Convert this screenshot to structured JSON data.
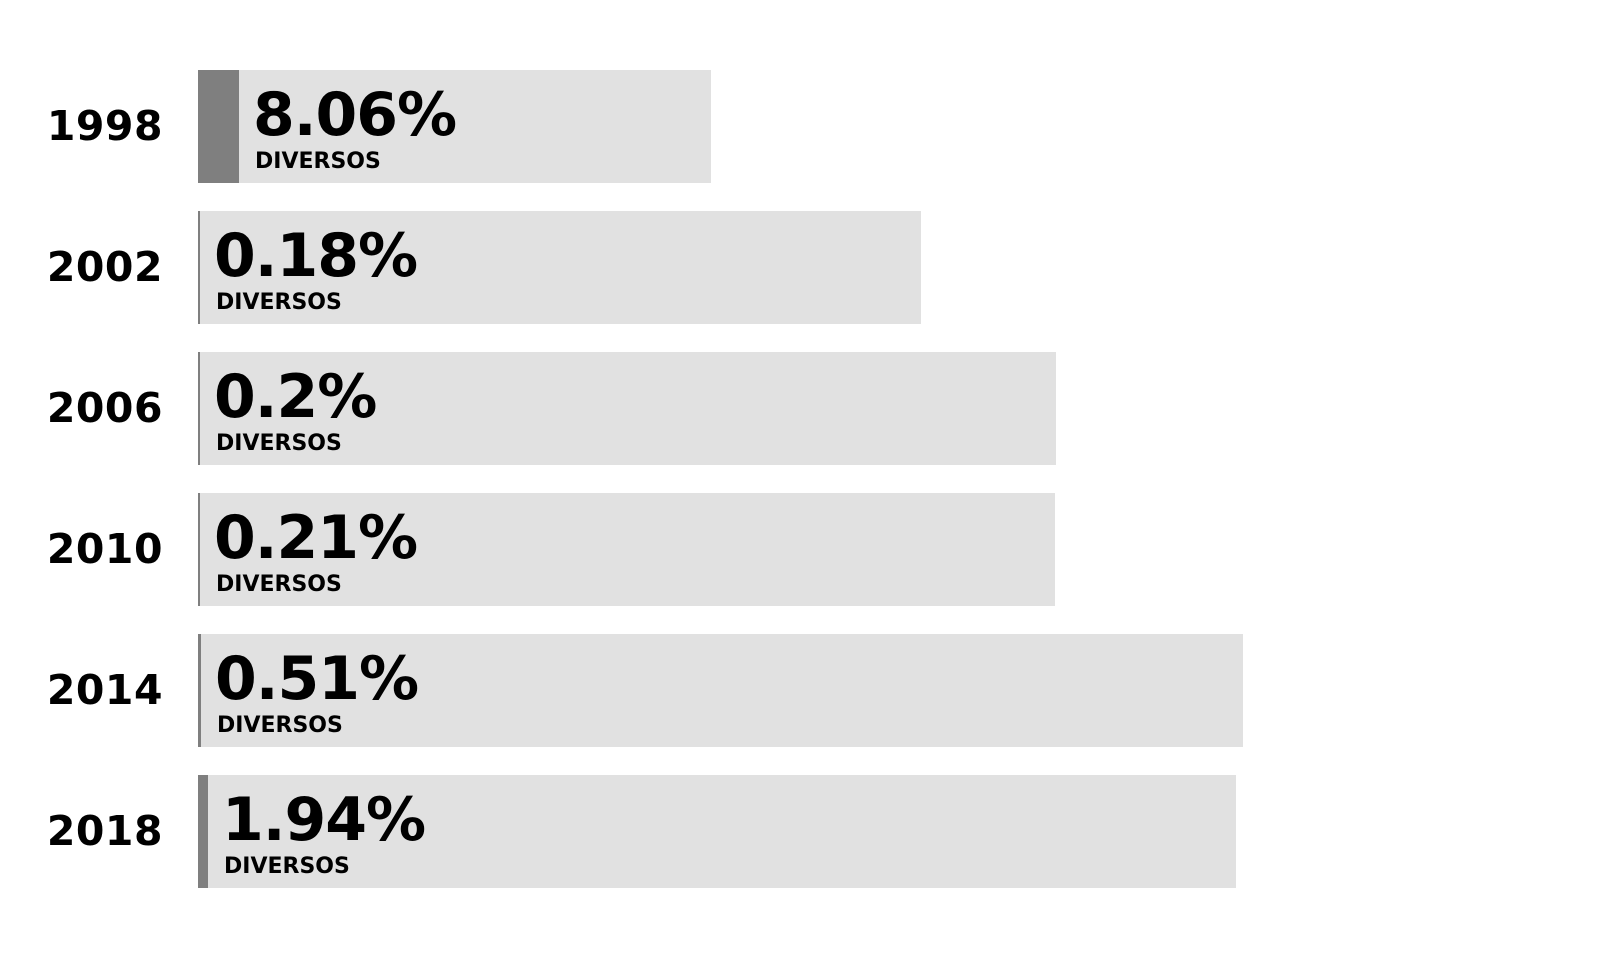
{
  "chart_data": {
    "type": "bar",
    "orientation": "horizontal",
    "categories": [
      "1998",
      "2002",
      "2006",
      "2010",
      "2014",
      "2018"
    ],
    "series": [
      {
        "values": [
          8.06,
          0.18,
          0.2,
          0.21,
          0.51,
          1.94
        ],
        "value_labels": [
          "8.06%",
          "0.18%",
          "0.2%",
          "0.21%",
          "0.51%",
          "1.94%"
        ],
        "item_labels": [
          "DIVERSOS",
          "DIVERSOS",
          "DIVERSOS",
          "DIVERSOS",
          "DIVERSOS",
          "DIVERSOS"
        ]
      }
    ],
    "background_totals": [
      100,
      100,
      100,
      100,
      100,
      100
    ],
    "xlim": [
      0,
      100
    ],
    "title": "",
    "xlabel": "",
    "ylabel": "",
    "grid": false,
    "legend": "none",
    "colors": {
      "fill": "#7f7f7f",
      "background": "#e1e1e1",
      "text": "#000000"
    }
  }
}
